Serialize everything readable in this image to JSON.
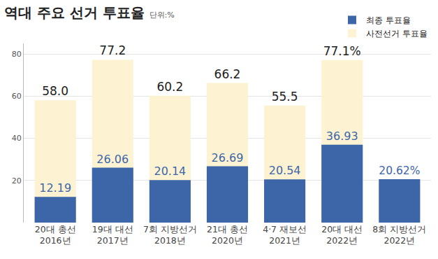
{
  "chart_data": {
    "type": "bar",
    "title": "역대 주요 선거 투표율",
    "subtitle": "단위:%",
    "categories": [
      "20대 총선\n2016년",
      "19대 대선\n2017년",
      "7회 지방선거\n2018년",
      "21대 총선\n2020년",
      "4·7 재보선\n2021년",
      "20대 대선\n2022년",
      "8회 지방선거\n2022년"
    ],
    "series": [
      {
        "name": "사전선거 투표율",
        "color": "#fdf3d3",
        "values": [
          58.0,
          77.2,
          60.2,
          66.2,
          55.5,
          77.1,
          null
        ],
        "value_labels": [
          "58.0",
          "77.2",
          "60.2",
          "66.2",
          "55.5",
          "77.1%",
          null
        ]
      },
      {
        "name": "최종 투표율",
        "color": "#3d66a8",
        "values": [
          12.19,
          26.06,
          20.14,
          26.69,
          20.54,
          36.93,
          20.62
        ],
        "value_labels": [
          "12.19",
          "26.06",
          "20.14",
          "26.69",
          "20.54",
          "36.93",
          "20.62%"
        ]
      }
    ],
    "ylim": [
      0,
      85
    ],
    "yticks": [
      20,
      40,
      60,
      80
    ],
    "grid": true,
    "legend": "top right",
    "data_labels": true
  }
}
